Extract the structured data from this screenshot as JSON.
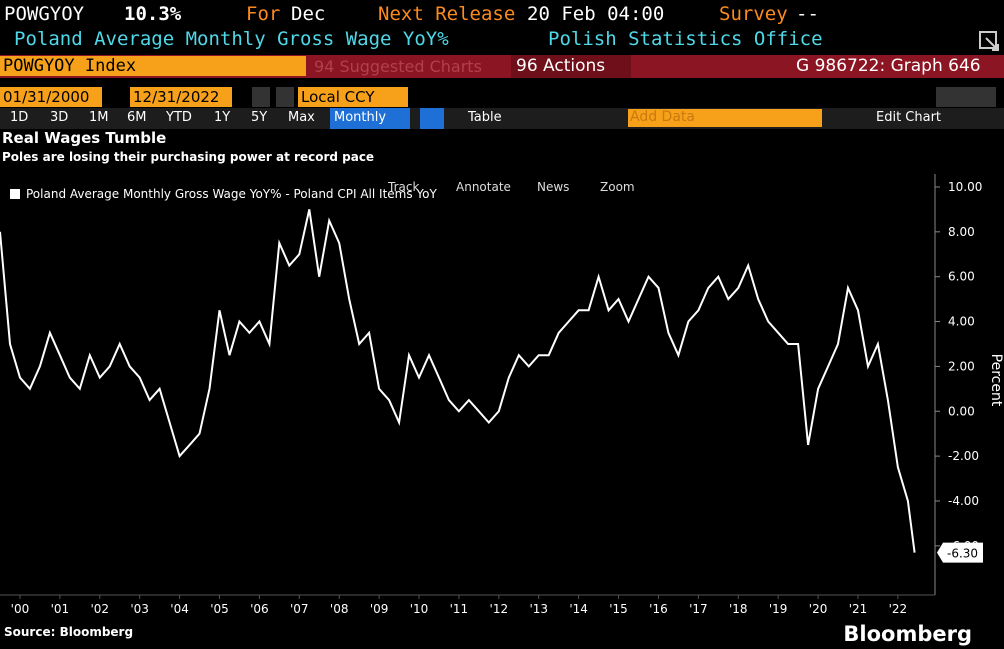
{
  "header": {
    "ticker": "POWGYOY",
    "last": "10.3%",
    "for_label": "For",
    "for_value": "Dec",
    "release_label": "Next Release",
    "release_value": "20 Feb 04:00",
    "survey_label": "Survey",
    "survey_value": "--",
    "description": "Poland Average Monthly Gross Wage YoY%",
    "source_office": "Polish Statistics Office"
  },
  "command_bar": {
    "security": "POWGYOY Index",
    "suggested": "94 Suggested Charts",
    "actions": "96 Actions",
    "graph_id": "G 986722: Graph 646"
  },
  "toolbar": {
    "start_date": "01/31/2000",
    "end_date": "12/31/2022",
    "currency": "Local CCY",
    "ranges": [
      "1D",
      "3D",
      "1M",
      "6M",
      "YTD",
      "1Y",
      "5Y",
      "Max"
    ],
    "frequency": "Monthly",
    "table": "Table",
    "add_data": "Add Data",
    "edit_chart": "Edit Chart",
    "tools": [
      "Track",
      "Annotate",
      "News",
      "Zoom"
    ]
  },
  "footer": {
    "source": "Source: Bloomberg",
    "brand": "Bloomberg"
  },
  "chart_data": {
    "type": "line",
    "title": "Real Wages Tumble",
    "subtitle": "Poles are losing their purchasing power at record pace",
    "y_label": "Percent",
    "last_value_label": "-6.30",
    "series": [
      {
        "name": "Poland Average Monthly Gross Wage YoY% - Poland CPI All Items YoY",
        "color": "#ffffff",
        "x": [
          2000,
          2000.25,
          2000.5,
          2000.75,
          2001,
          2001.25,
          2001.5,
          2001.75,
          2002,
          2002.25,
          2002.5,
          2002.75,
          2003,
          2003.25,
          2003.5,
          2003.75,
          2004,
          2004.25,
          2004.5,
          2004.75,
          2005,
          2005.25,
          2005.5,
          2005.75,
          2006,
          2006.25,
          2006.5,
          2006.75,
          2007,
          2007.25,
          2007.5,
          2007.75,
          2008,
          2008.25,
          2008.5,
          2008.75,
          2009,
          2009.25,
          2009.5,
          2009.75,
          2010,
          2010.25,
          2010.5,
          2010.75,
          2011,
          2011.25,
          2011.5,
          2011.75,
          2012,
          2012.25,
          2012.5,
          2012.75,
          2013,
          2013.25,
          2013.5,
          2013.75,
          2014,
          2014.25,
          2014.5,
          2014.75,
          2015,
          2015.25,
          2015.5,
          2015.75,
          2016,
          2016.25,
          2016.5,
          2016.75,
          2017,
          2017.25,
          2017.5,
          2017.75,
          2018,
          2018.25,
          2018.5,
          2018.75,
          2019,
          2019.25,
          2019.5,
          2019.75,
          2020,
          2020.25,
          2020.5,
          2020.75,
          2021,
          2021.25,
          2021.5,
          2021.75,
          2022,
          2022.25,
          2022.5,
          2022.75,
          2022.92
        ],
        "values": [
          8.0,
          3.0,
          1.5,
          1.0,
          2.0,
          3.5,
          2.5,
          1.5,
          1.0,
          2.5,
          1.5,
          2.0,
          3.0,
          2.0,
          1.5,
          0.5,
          1.0,
          -0.5,
          -2.0,
          -1.5,
          -1.0,
          1.0,
          4.5,
          2.5,
          4.0,
          3.5,
          4.0,
          3.0,
          7.5,
          6.5,
          7.0,
          9.0,
          6.0,
          8.5,
          7.5,
          5.0,
          3.0,
          3.5,
          1.0,
          0.5,
          -0.5,
          2.5,
          1.5,
          2.5,
          1.5,
          0.5,
          0.0,
          0.5,
          0.0,
          -0.5,
          0.0,
          1.5,
          2.5,
          2.0,
          2.5,
          2.5,
          3.5,
          4.0,
          4.5,
          4.5,
          6.0,
          4.5,
          5.0,
          4.0,
          5.0,
          6.0,
          5.5,
          3.5,
          2.5,
          4.0,
          4.5,
          5.5,
          6.0,
          5.0,
          5.5,
          6.5,
          5.0,
          4.0,
          3.5,
          3.0,
          3.0,
          -1.5,
          1.0,
          2.0,
          3.0,
          5.5,
          4.5,
          2.0,
          3.0,
          0.5,
          -2.5,
          -4.0,
          -6.3
        ]
      }
    ],
    "xlim": [
      2000,
      2023.43
    ],
    "xticks": [
      {
        "value": 2000.5,
        "label": "'00"
      },
      {
        "value": 2001.5,
        "label": "'01"
      },
      {
        "value": 2002.5,
        "label": "'02"
      },
      {
        "value": 2003.5,
        "label": "'03"
      },
      {
        "value": 2004.5,
        "label": "'04"
      },
      {
        "value": 2005.5,
        "label": "'05"
      },
      {
        "value": 2006.5,
        "label": "'06"
      },
      {
        "value": 2007.5,
        "label": "'07"
      },
      {
        "value": 2008.5,
        "label": "'08"
      },
      {
        "value": 2009.5,
        "label": "'09"
      },
      {
        "value": 2010.5,
        "label": "'10"
      },
      {
        "value": 2011.5,
        "label": "'11"
      },
      {
        "value": 2012.5,
        "label": "'12"
      },
      {
        "value": 2013.5,
        "label": "'13"
      },
      {
        "value": 2014.5,
        "label": "'14"
      },
      {
        "value": 2015.5,
        "label": "'15"
      },
      {
        "value": 2016.5,
        "label": "'16"
      },
      {
        "value": 2017.5,
        "label": "'17"
      },
      {
        "value": 2018.5,
        "label": "'18"
      },
      {
        "value": 2019.5,
        "label": "'19"
      },
      {
        "value": 2020.5,
        "label": "'20"
      },
      {
        "value": 2021.5,
        "label": "'21"
      },
      {
        "value": 2022.5,
        "label": "'22"
      }
    ],
    "ylim": [
      -7.3,
      10.4
    ],
    "yticks": [
      {
        "value": -6,
        "label": "-6.00"
      },
      {
        "value": -4,
        "label": "-4.00"
      },
      {
        "value": -2,
        "label": "-2.00"
      },
      {
        "value": 0,
        "label": "0.00"
      },
      {
        "value": 2,
        "label": "2.00"
      },
      {
        "value": 4,
        "label": "4.00"
      },
      {
        "value": 6,
        "label": "6.00"
      },
      {
        "value": 8,
        "label": "8.00"
      },
      {
        "value": 10,
        "label": "10.00"
      }
    ]
  }
}
